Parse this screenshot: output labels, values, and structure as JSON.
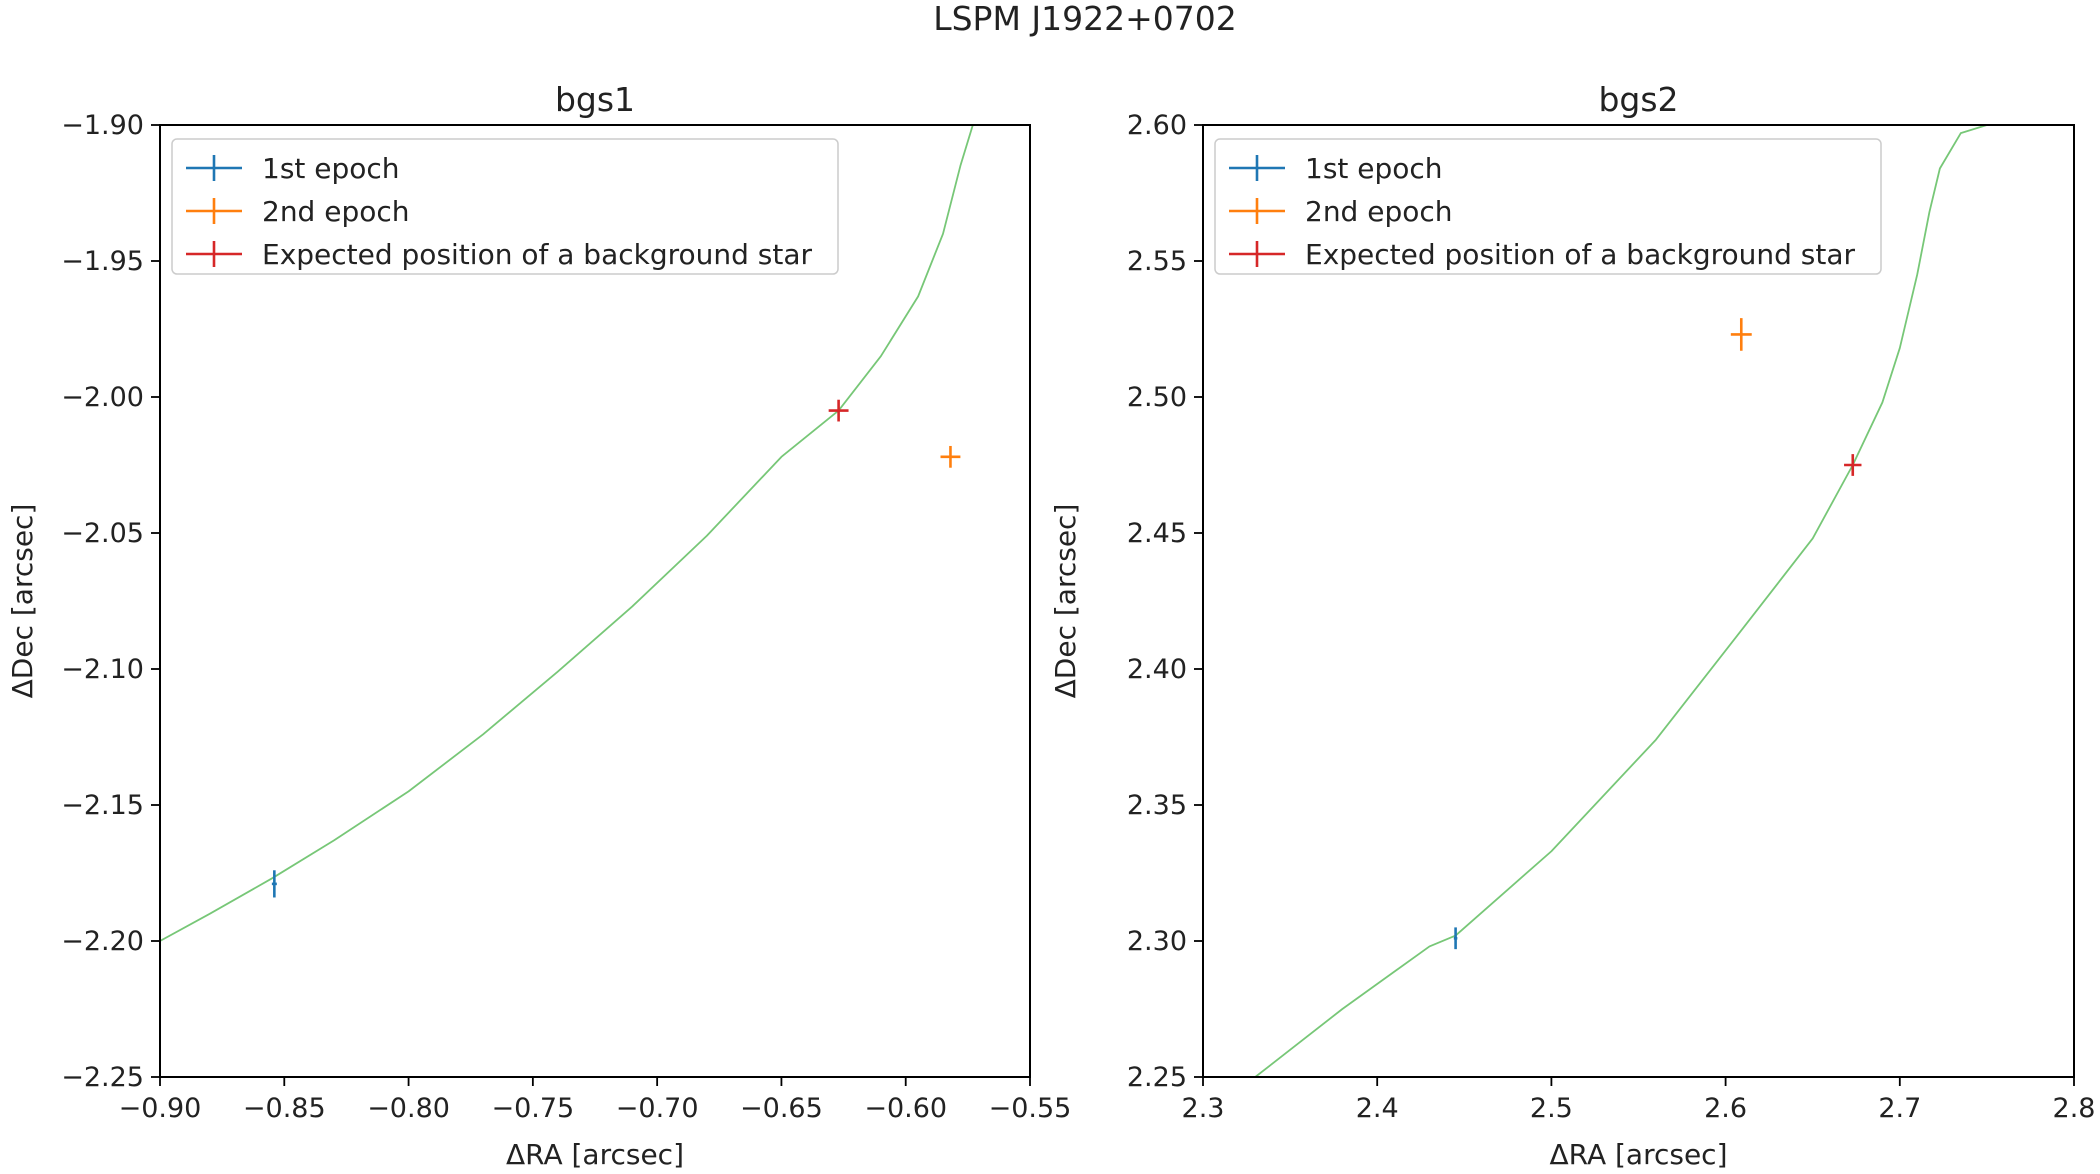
{
  "suptitle": "LSPM J1922+0702",
  "chart_data": [
    {
      "type": "scatter",
      "title": "bgs1",
      "xlabel": "ΔRA [arcsec]",
      "ylabel": "ΔDec [arcsec]",
      "xlim": [
        -0.9,
        -0.55
      ],
      "ylim": [
        -2.25,
        -1.9
      ],
      "xticks": [
        -0.9,
        -0.85,
        -0.8,
        -0.75,
        -0.7,
        -0.65,
        -0.6,
        -0.55
      ],
      "xtick_labels": [
        "−0.90",
        "−0.85",
        "−0.80",
        "−0.75",
        "−0.70",
        "−0.65",
        "−0.60",
        "−0.55"
      ],
      "yticks": [
        -2.25,
        -2.2,
        -2.15,
        -2.1,
        -2.05,
        -2.0,
        -1.95,
        -1.9
      ],
      "ytick_labels": [
        "−2.25",
        "−2.20",
        "−2.15",
        "−2.10",
        "−2.05",
        "−2.00",
        "−1.95",
        "−1.90"
      ],
      "track": {
        "color": "#77c777",
        "x": [
          -0.9,
          -0.88,
          -0.855,
          -0.83,
          -0.8,
          -0.77,
          -0.74,
          -0.71,
          -0.68,
          -0.65,
          -0.627,
          -0.61,
          -0.595,
          -0.585,
          -0.578,
          -0.573
        ],
        "y": [
          -2.2,
          -2.19,
          -2.177,
          -2.163,
          -2.145,
          -2.124,
          -2.101,
          -2.077,
          -2.051,
          -2.022,
          -2.005,
          -1.985,
          -1.963,
          -1.94,
          -1.915,
          -1.9
        ]
      },
      "series": [
        {
          "name": "1st epoch",
          "color": "#1f77b4",
          "points": [
            {
              "x": -0.854,
              "y": -2.179,
              "xerr": 0.001,
              "yerr": 0.005
            }
          ]
        },
        {
          "name": "2nd epoch",
          "color": "#ff7f0e",
          "points": [
            {
              "x": -0.582,
              "y": -2.022,
              "xerr": 0.004,
              "yerr": 0.004
            }
          ]
        },
        {
          "name": "Expected position of a background star",
          "color": "#d62728",
          "points": [
            {
              "x": -0.627,
              "y": -2.005,
              "xerr": 0.004,
              "yerr": 0.004
            }
          ]
        }
      ],
      "legend_position": "upper-left"
    },
    {
      "type": "scatter",
      "title": "bgs2",
      "xlabel": "ΔRA [arcsec]",
      "ylabel": "ΔDec [arcsec]",
      "xlim": [
        2.3,
        2.8
      ],
      "ylim": [
        2.25,
        2.6
      ],
      "xticks": [
        2.3,
        2.4,
        2.5,
        2.6,
        2.7,
        2.8
      ],
      "xtick_labels": [
        "2.3",
        "2.4",
        "2.5",
        "2.6",
        "2.7",
        "2.8"
      ],
      "yticks": [
        2.25,
        2.3,
        2.35,
        2.4,
        2.45,
        2.5,
        2.55,
        2.6
      ],
      "ytick_labels": [
        "2.25",
        "2.30",
        "2.35",
        "2.40",
        "2.45",
        "2.50",
        "2.55",
        "2.60"
      ],
      "track": {
        "color": "#77c777",
        "x": [
          2.33,
          2.38,
          2.43,
          2.445,
          2.5,
          2.56,
          2.61,
          2.65,
          2.673,
          2.69,
          2.7,
          2.71,
          2.717,
          2.723,
          2.735,
          2.75
        ],
        "y": [
          2.25,
          2.275,
          2.298,
          2.302,
          2.333,
          2.374,
          2.415,
          2.448,
          2.475,
          2.498,
          2.518,
          2.545,
          2.568,
          2.584,
          2.597,
          2.6
        ]
      },
      "series": [
        {
          "name": "1st epoch",
          "color": "#1f77b4",
          "points": [
            {
              "x": 2.445,
              "y": 2.301,
              "xerr": 0.001,
              "yerr": 0.004
            }
          ]
        },
        {
          "name": "2nd epoch",
          "color": "#ff7f0e",
          "points": [
            {
              "x": 2.609,
              "y": 2.523,
              "xerr": 0.006,
              "yerr": 0.006
            }
          ]
        },
        {
          "name": "Expected position of a background star",
          "color": "#d62728",
          "points": [
            {
              "x": 2.673,
              "y": 2.475,
              "xerr": 0.005,
              "yerr": 0.004
            }
          ]
        }
      ],
      "legend_position": "upper-left"
    }
  ]
}
